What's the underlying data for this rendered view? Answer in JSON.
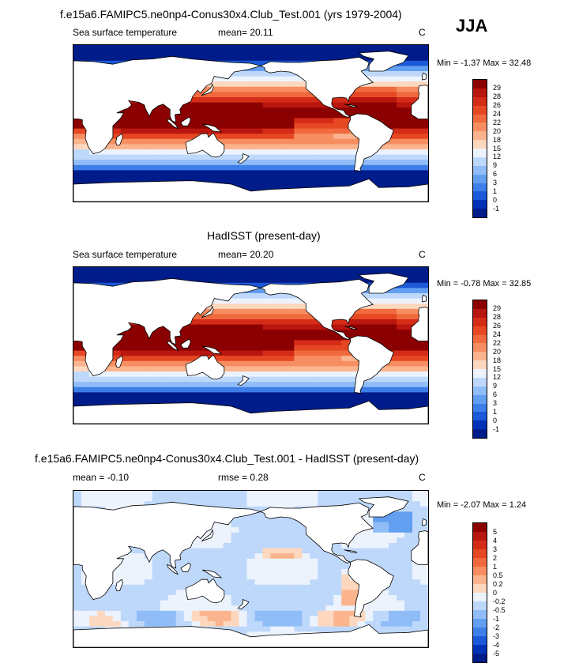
{
  "season": "JJA",
  "panels": [
    {
      "title": "f.e15a6.FAMIPC5.ne0np4-Conus30x4.Club_Test.001 (yrs 1979-2004)",
      "left_label": "Sea surface temperature",
      "stat_label": "mean=  20.11",
      "units": "C",
      "minmax": "Min =  -1.37 Max =  32.48"
    },
    {
      "title": "HadISST (present-day)",
      "left_label": "Sea surface temperature",
      "stat_label": "mean=  20.20",
      "units": "C",
      "minmax": "Min =  -0.78 Max =  32.85"
    },
    {
      "title": "f.e15a6.FAMIPC5.ne0np4-Conus30x4.Club_Test.001 - HadISST (present-day)",
      "left_label": "mean =  -0.10",
      "stat_label": "rmse =   0.28",
      "units": "C",
      "minmax": "Min =  -2.07 Max =   1.24"
    }
  ],
  "chart_data": [
    {
      "type": "heatmap",
      "map": "global sea surface temperature (JJA)",
      "mean": 20.11,
      "min": -1.37,
      "max": 32.48,
      "colorbar_levels": [
        "29",
        "28",
        "26",
        "24",
        "22",
        "20",
        "18",
        "15",
        "12",
        "9",
        "6",
        "3",
        "1",
        "0",
        "-1"
      ],
      "colorbar_colors": [
        "#8b0000",
        "#b8160e",
        "#d42c17",
        "#e64824",
        "#f06a3e",
        "#f78e61",
        "#fbb48d",
        "#fdd8bf",
        "#ecf3fd",
        "#bed8fb",
        "#90bdf7",
        "#639ff0",
        "#3d7ee8",
        "#1b59d8",
        "#0032b8",
        "#001c8a"
      ]
    },
    {
      "type": "heatmap",
      "map": "global sea surface temperature (JJA)",
      "mean": 20.2,
      "min": -0.78,
      "max": 32.85,
      "colorbar_levels": [
        "29",
        "28",
        "26",
        "24",
        "22",
        "20",
        "18",
        "15",
        "12",
        "9",
        "6",
        "3",
        "1",
        "0",
        "-1"
      ],
      "colorbar_colors": [
        "#8b0000",
        "#b8160e",
        "#d42c17",
        "#e64824",
        "#f06a3e",
        "#f78e61",
        "#fbb48d",
        "#fdd8bf",
        "#ecf3fd",
        "#bed8fb",
        "#90bdf7",
        "#639ff0",
        "#3d7ee8",
        "#1b59d8",
        "#0032b8",
        "#001c8a"
      ]
    },
    {
      "type": "heatmap",
      "map": "sea surface temperature difference (JJA)",
      "mean": -0.1,
      "rmse": 0.28,
      "min": -2.07,
      "max": 1.24,
      "colorbar_levels": [
        "5",
        "4",
        "3",
        "2",
        "1",
        "0.5",
        "0.2",
        "0",
        "-0.2",
        "-0.5",
        "-1",
        "-2",
        "-3",
        "-4",
        "-5"
      ],
      "colorbar_colors": [
        "#8b0000",
        "#b8160e",
        "#d42c17",
        "#e64824",
        "#f06a3e",
        "#f78e61",
        "#fbb48d",
        "#fdd8bf",
        "#ecf3fd",
        "#bed8fb",
        "#90bdf7",
        "#639ff0",
        "#3d7ee8",
        "#1b59d8",
        "#0032b8",
        "#001c8a"
      ]
    }
  ]
}
